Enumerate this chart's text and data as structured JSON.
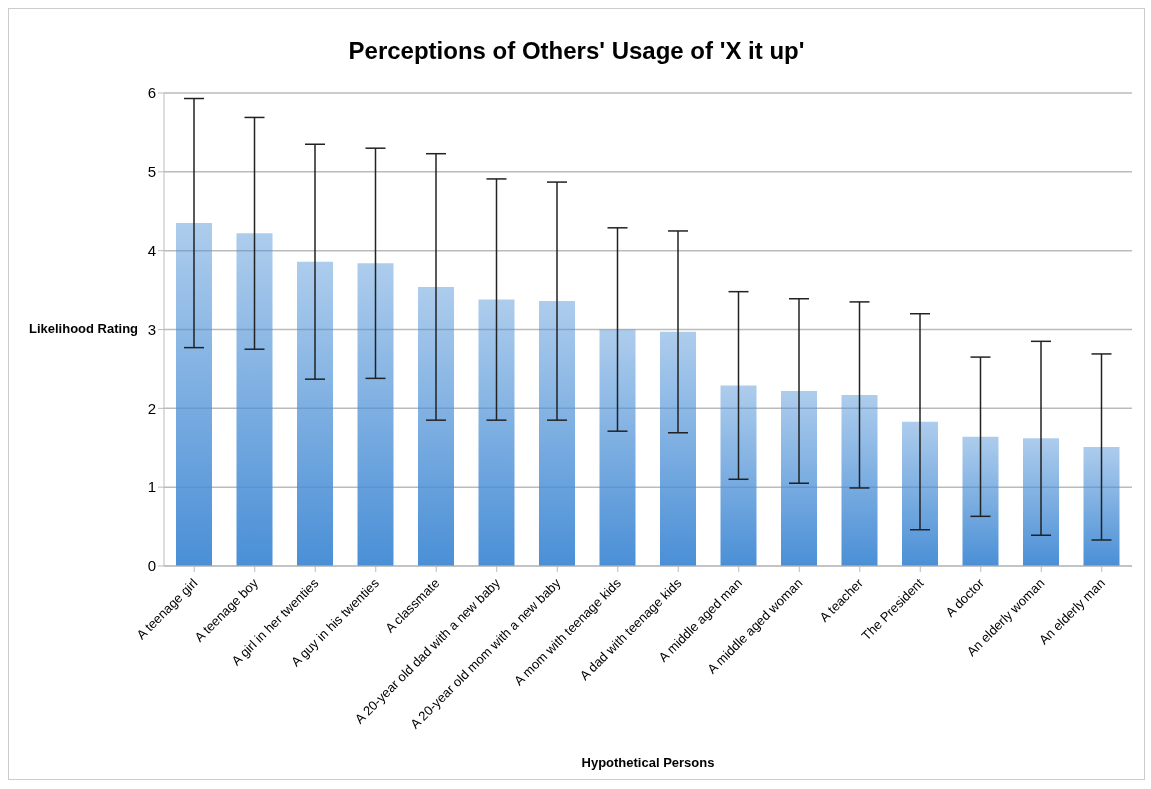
{
  "chart_data": {
    "type": "bar",
    "title": "Perceptions of Others' Usage of 'X it up'",
    "xlabel": "Hypothetical Persons",
    "ylabel": "Likelihood Rating",
    "categories": [
      "A teenage girl",
      "A teenage boy",
      "A girl in her twenties",
      "A guy in his twenties",
      "A classmate",
      "A 20-year old dad with a new baby",
      "A 20-year old mom with a new baby",
      "A mom with teenage kids",
      "A dad with teenage kids",
      "A middle aged man",
      "A middle aged woman",
      "A teacher",
      "The President",
      "A doctor",
      "An elderly woman",
      "An elderly man"
    ],
    "values": [
      4.35,
      4.22,
      3.86,
      3.84,
      3.54,
      3.38,
      3.36,
      3.0,
      2.97,
      2.29,
      2.22,
      2.17,
      1.83,
      1.64,
      1.62,
      1.51
    ],
    "errors": [
      1.58,
      1.47,
      1.49,
      1.46,
      1.69,
      1.53,
      1.51,
      1.29,
      1.28,
      1.19,
      1.17,
      1.18,
      1.37,
      1.01,
      1.23,
      1.18
    ],
    "color": "#4a8fd6",
    "ylim": [
      0,
      6
    ],
    "yticks": [
      0,
      1,
      2,
      3,
      4,
      5,
      6
    ],
    "grid": "y",
    "legend": false
  }
}
